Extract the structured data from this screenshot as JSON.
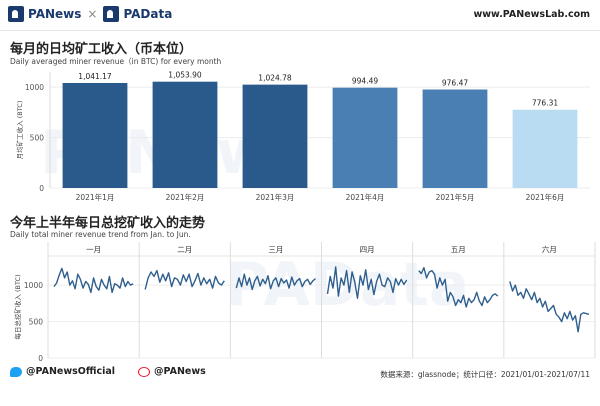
{
  "header": {
    "brand_left": "PANews",
    "separator": "×",
    "brand_right": "PAData",
    "site": "www.PANewsLab.com"
  },
  "watermarks": {
    "w1": "PANews",
    "w2": "PAData"
  },
  "footer": {
    "twitter": "@PANewsOfficial",
    "weibo": "@PANews",
    "source": "数据来源：glassnode；统计口径：2021/01/01-2021/07/11"
  },
  "colors": {
    "bar_dark": "#2a5a8c",
    "bar_mid": "#4a7fb3",
    "bar_light": "#b9dcf2",
    "line": "#2f5f8e"
  },
  "chart_data": [
    {
      "type": "bar",
      "title": "每月的日均矿工收入（币本位）",
      "subtitle": "Daily averaged miner revenue（in BTC) for every month",
      "ylabel": "月均矿工收入 (BTC)",
      "xlabel": "",
      "categories": [
        "2021年1月",
        "2021年2月",
        "2021年3月",
        "2021年4月",
        "2021年5月",
        "2021年6月"
      ],
      "values": [
        1041.17,
        1053.9,
        1024.78,
        994.49,
        976.47,
        776.31
      ],
      "value_labels": [
        "1,041.17",
        "1,053.90",
        "1,024.78",
        "994.49",
        "976.47",
        "776.31"
      ],
      "yticks": [
        0,
        500,
        1000
      ],
      "ylim": [
        0,
        1150
      ],
      "grid": true
    },
    {
      "type": "line",
      "title": "今年上半年每日总挖矿收入的走势",
      "subtitle": "Daily total miner revenue trend from Jan. to Jun.",
      "ylabel": "每日总挖矿收入 (BTC)",
      "panels": [
        "一月",
        "二月",
        "三月",
        "四月",
        "五月",
        "六月"
      ],
      "yticks": [
        0,
        500,
        1000
      ],
      "ylim": [
        0,
        1400
      ],
      "series": [
        {
          "values": [
            980,
            1030,
            1140,
            1230,
            1100,
            1180,
            1000,
            1060,
            950,
            1150,
            1080,
            960,
            1050,
            1010,
            900,
            1100,
            980,
            930,
            1080,
            1000,
            950,
            1120,
            900,
            1020,
            1000,
            960,
            1100,
            980,
            1050,
            1000,
            1020
          ]
        },
        {
          "values": [
            940,
            1100,
            1180,
            1120,
            1200,
            1040,
            1150,
            1060,
            1170,
            980,
            1100,
            1080,
            1000,
            1140,
            1050,
            1150,
            980,
            1060,
            1160,
            1000,
            1100,
            1020,
            1080,
            960,
            1120,
            1030,
            1000,
            1060
          ]
        },
        {
          "values": [
            960,
            1100,
            980,
            1150,
            1000,
            1100,
            940,
            1060,
            1120,
            990,
            1080,
            1020,
            1130,
            950,
            1060,
            1100,
            980,
            1090,
            1030,
            1070,
            960,
            1110,
            1000,
            1060,
            1090,
            980,
            1050,
            1080,
            1010,
            1060,
            1090
          ]
        },
        {
          "values": [
            880,
            1120,
            960,
            1250,
            850,
            1100,
            1000,
            1200,
            900,
            1180,
            1040,
            820,
            1130,
            1000,
            1210,
            940,
            1080,
            870,
            1050,
            1150,
            1000,
            980,
            1100,
            1050,
            900,
            1090,
            1000,
            1080,
            1010,
            1070
          ]
        },
        {
          "values": [
            1200,
            1160,
            1240,
            1100,
            1180,
            1200,
            1150,
            960,
            1100,
            1000,
            1080,
            780,
            900,
            840,
            720,
            800,
            760,
            860,
            700,
            820,
            760,
            800,
            900,
            780,
            720,
            840,
            760,
            800,
            860,
            880,
            850
          ]
        },
        {
          "values": [
            1050,
            920,
            1000,
            860,
            900,
            820,
            950,
            880,
            800,
            900,
            760,
            820,
            700,
            780,
            640,
            680,
            720,
            600,
            560,
            500,
            620,
            540,
            640,
            520,
            580,
            360,
            600,
            620,
            610,
            600
          ]
        }
      ]
    }
  ]
}
